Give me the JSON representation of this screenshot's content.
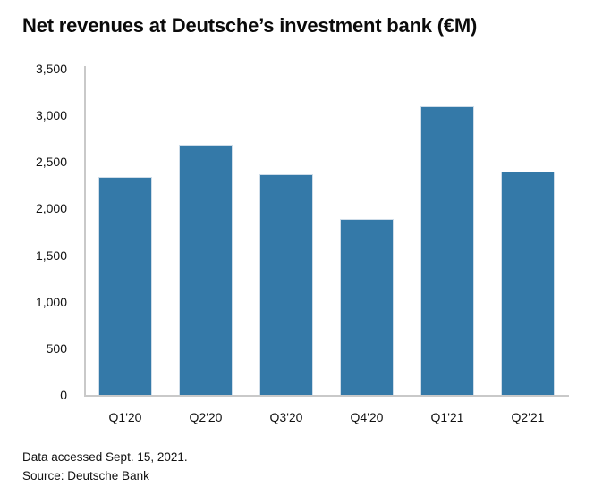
{
  "title": "Net revenues at Deutsche’s investment bank (€M)",
  "footer": {
    "line1": "Data accessed Sept. 15, 2021.",
    "line2": "Source: Deutsche Bank"
  },
  "chart_data": {
    "type": "bar",
    "title": "Net revenues at Deutsche’s investment bank (€M)",
    "categories": [
      "Q1'20",
      "Q2'20",
      "Q3'20",
      "Q4'20",
      "Q1'21",
      "Q2'21"
    ],
    "values": [
      2338,
      2686,
      2364,
      1891,
      3097,
      2394
    ],
    "xlabel": "",
    "ylabel": "",
    "ylim": [
      0,
      3500
    ],
    "ytick_step": 500,
    "ytick_labels": [
      "0",
      "500",
      "1,000",
      "1,500",
      "2,000",
      "2,500",
      "3,000",
      "3,500"
    ],
    "grid": false,
    "legend": null,
    "bar_color": "#3479a8",
    "bar_border_color": "#cfdde9",
    "axis_color": "#c9c9c9",
    "text_color": "#111111"
  }
}
